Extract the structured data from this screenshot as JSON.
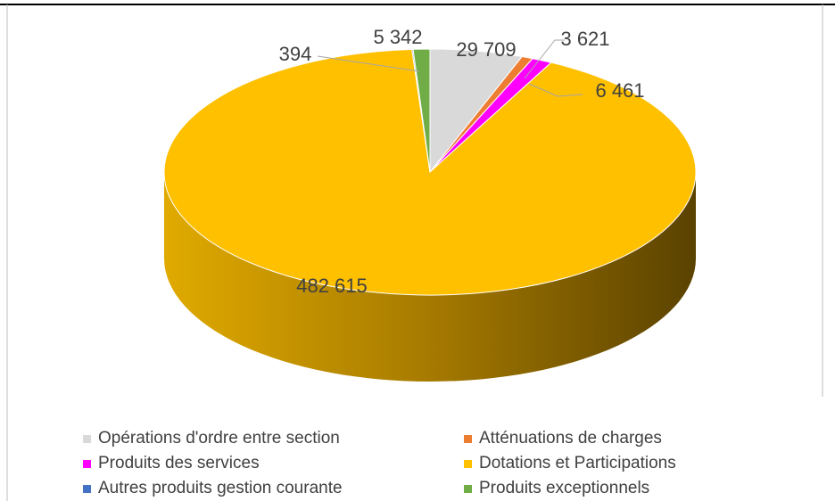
{
  "chart_data": {
    "type": "pie3d",
    "categories": [
      "Opérations d'ordre entre section",
      "Atténuations de charges",
      "Produits des services",
      "Dotations et Participations",
      "Autres produits gestion courante",
      "Produits exceptionnels"
    ],
    "values": [
      29709,
      3621,
      6461,
      482615,
      394,
      5342
    ],
    "value_labels": [
      "29 709",
      "3 621",
      "6 461",
      "482 615",
      "394",
      "5 342"
    ],
    "colors": [
      "#d9d9d9",
      "#ed7d31",
      "#ff00ff",
      "#ffc000",
      "#4472c4",
      "#70ad47"
    ]
  }
}
